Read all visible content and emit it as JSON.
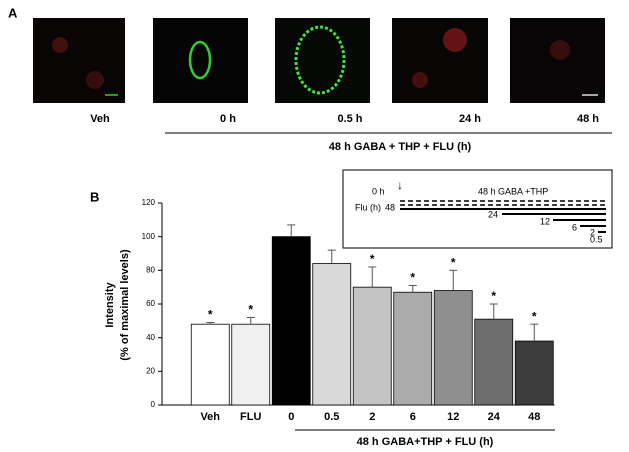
{
  "panel_a": {
    "label": "A",
    "images": [
      "Veh",
      "0 h",
      "0.5 h",
      "24 h",
      "48 h"
    ],
    "bracket_label": "48 h GABA + THP  + FLU (h)"
  },
  "panel_b_label": "B",
  "inset": {
    "start_label": "0 h",
    "top_line_label": "48 h GABA +THP",
    "flu_label": "Flu (h)",
    "times": [
      "48",
      "24",
      "12",
      "6",
      "2",
      "0.5"
    ]
  },
  "chart_data": {
    "type": "bar",
    "y_label": [
      "Intensity",
      "(% of maximal levels)"
    ],
    "group_label": "48 h GABA+THP + FLU (h)",
    "categories": [
      "Veh",
      "FLU",
      "0",
      "0.5",
      "2",
      "6",
      "12",
      "24",
      "48"
    ],
    "values": [
      48,
      48,
      100,
      84,
      70,
      67,
      68,
      51,
      38
    ],
    "errors": [
      1,
      4,
      7,
      8,
      12,
      4,
      12,
      9,
      10
    ],
    "significance": [
      "*",
      "*",
      null,
      null,
      "*",
      "*",
      "*",
      "*",
      "*"
    ],
    "colors": [
      "#ffffff",
      "#f0f0f0",
      "#000000",
      "#d9d9d9",
      "#c4c4c4",
      "#ababab",
      "#8f8f8f",
      "#6e6e6e",
      "#3c3c3c"
    ],
    "ylim": [
      0,
      120
    ],
    "yticks": [
      0,
      20,
      40,
      60,
      80,
      100,
      120
    ]
  }
}
